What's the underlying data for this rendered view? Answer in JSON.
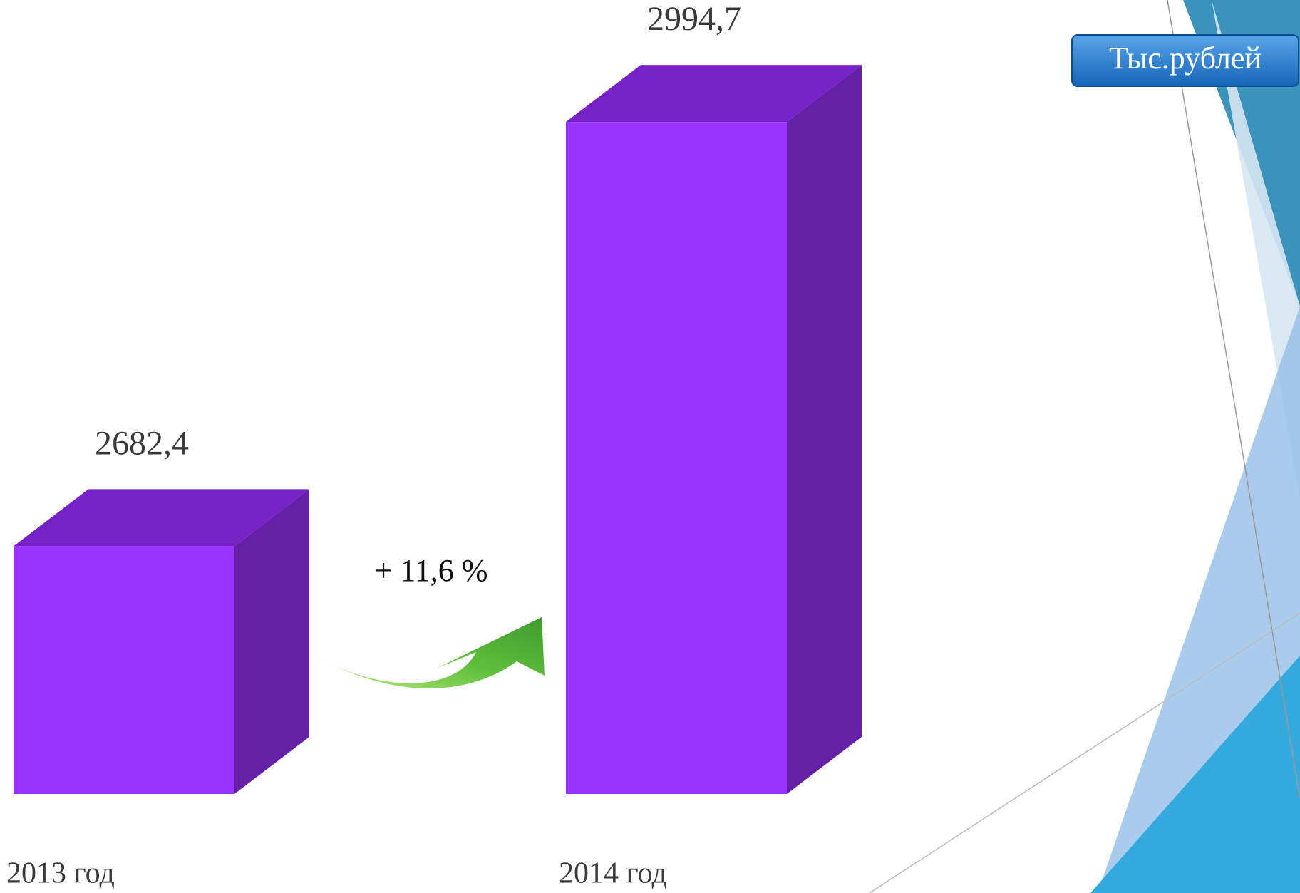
{
  "chart_data": {
    "type": "bar3d",
    "categories": [
      "2013 год",
      "2014 год"
    ],
    "values": [
      2682.4,
      2994.7
    ],
    "value_labels": [
      "2682,4",
      "2994,7"
    ],
    "ylim": [
      2500,
      3000
    ],
    "colors": {
      "front": "#9933ff",
      "top": "#7722c8",
      "side": "#6420a6"
    },
    "annotation": "+ 11,6 %",
    "unit_label": "Тыс.рублей"
  }
}
